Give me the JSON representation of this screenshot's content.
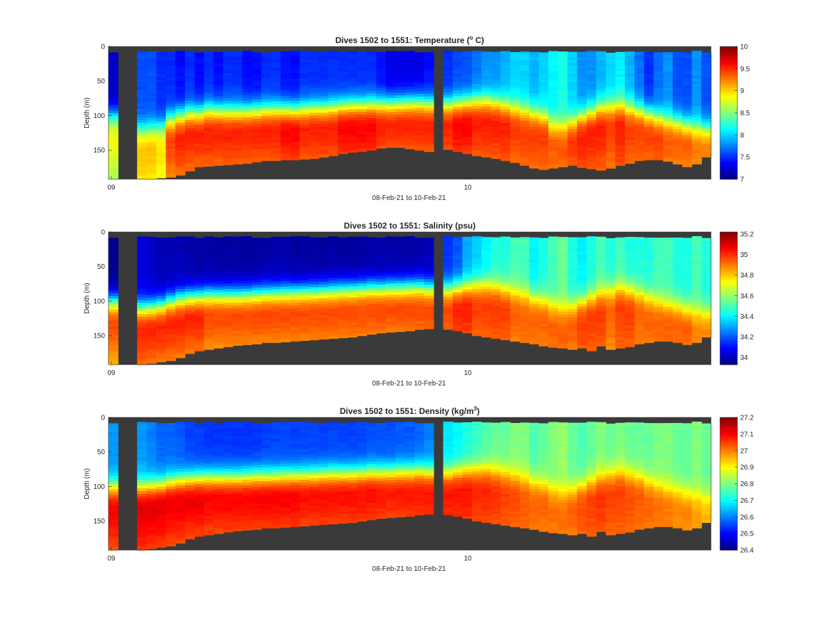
{
  "figure": {
    "colors": {
      "background": "#ffffff",
      "no_data": "#3a3a3a",
      "colormap": "jet"
    }
  },
  "chart_data": [
    {
      "type": "heatmap",
      "title_prefix": "Dives 1502 to 1551: Temperature (",
      "title_sup": "o",
      "title_suffix": " C)",
      "variable": "temperature",
      "xlabel": "08-Feb-21 to 10-Feb-21",
      "ylabel": "Depth (m)",
      "x_ticks": [
        "09",
        "10"
      ],
      "y_ticks": [
        0,
        50,
        100,
        150
      ],
      "ylim": [
        0,
        192
      ],
      "y_reversed": true,
      "colorbar_ticks": [
        10,
        9.5,
        9,
        8.5,
        8,
        7.5,
        7
      ],
      "clim": [
        7,
        10
      ],
      "grid": false,
      "profiles": {
        "bottom_depth_m": [
          192,
          192,
          192,
          192,
          192,
          190,
          189,
          186,
          180,
          174,
          173,
          172,
          171,
          170,
          169,
          167,
          165,
          165,
          164,
          164,
          163,
          162,
          160,
          158,
          155,
          153,
          152,
          150,
          147,
          146,
          146,
          148,
          150,
          152,
          150,
          149,
          152,
          155,
          158,
          160,
          162,
          165,
          168,
          172,
          176,
          178,
          176,
          174,
          172,
          175,
          177,
          179,
          176,
          172,
          169,
          165,
          164,
          164,
          166,
          170,
          174,
          170,
          160
        ],
        "thermocline_m": [
          null,
          null,
          null,
          120,
          118,
          115,
          105,
          100,
          96,
          95,
          92,
          92,
          93,
          93,
          92,
          91,
          90,
          90,
          90,
          91,
          89,
          88,
          88,
          86,
          85,
          84,
          84,
          83,
          82,
          82,
          81,
          80,
          80,
          82,
          84,
          83,
          82,
          80,
          78,
          78,
          80,
          84,
          88,
          92,
          95,
          100,
          112,
          114,
          108,
          100,
          94,
          88,
          86,
          86,
          88,
          92,
          96,
          102,
          106,
          108,
          112,
          116,
          118
        ],
        "surface_value": [
          7.2,
          null,
          null,
          7.6,
          7.6,
          7.5,
          7.5,
          7.4,
          7.5,
          7.4,
          7.5,
          7.4,
          7.5,
          7.5,
          7.4,
          7.4,
          7.5,
          7.5,
          7.4,
          7.4,
          7.5,
          7.5,
          7.5,
          7.5,
          7.5,
          7.5,
          7.5,
          7.5,
          7.4,
          7.3,
          7.3,
          7.3,
          7.3,
          7.4,
          7.5,
          7.5,
          7.6,
          7.6,
          7.7,
          7.8,
          7.8,
          7.9,
          8.0,
          8.0,
          7.9,
          8.0,
          8.1,
          8.2,
          8.0,
          7.8,
          7.8,
          7.9,
          8.0,
          8.1,
          7.9,
          7.7,
          7.5,
          7.7,
          7.8,
          7.6,
          7.6,
          7.8,
          7.6
        ],
        "deep_value": [
          8.9,
          null,
          null,
          9.1,
          9.1,
          9.0,
          9.5,
          9.6,
          9.6,
          9.6,
          9.6,
          9.6,
          9.6,
          9.6,
          9.6,
          9.6,
          9.6,
          9.6,
          9.7,
          9.7,
          9.6,
          9.6,
          9.6,
          9.6,
          9.7,
          9.7,
          9.7,
          9.7,
          9.6,
          9.6,
          9.6,
          9.6,
          9.6,
          9.6,
          9.6,
          9.6,
          9.7,
          9.7,
          9.6,
          9.6,
          9.6,
          9.6,
          9.5,
          9.5,
          9.5,
          9.5,
          9.4,
          9.4,
          9.5,
          9.6,
          9.6,
          9.6,
          9.5,
          9.6,
          9.5,
          9.5,
          9.5,
          9.5,
          9.4,
          9.4,
          9.4,
          9.3,
          9.3
        ]
      }
    },
    {
      "type": "heatmap",
      "title_prefix": "Dives 1502 to 1551: Salinity (psu)",
      "title_sup": "",
      "title_suffix": "",
      "variable": "salinity",
      "xlabel": "08-Feb-21 to 10-Feb-21",
      "ylabel": "Depth (m)",
      "x_ticks": [
        "09",
        "10"
      ],
      "y_ticks": [
        0,
        50,
        100,
        150
      ],
      "ylim": [
        0,
        192
      ],
      "y_reversed": true,
      "colorbar_ticks": [
        35.2,
        35,
        34.8,
        34.6,
        34.4,
        34.2,
        34
      ],
      "clim": [
        33.93,
        35.22
      ],
      "grid": false,
      "profiles": {
        "bottom_depth_m": [
          192,
          192,
          192,
          192,
          190,
          188,
          186,
          182,
          176,
          172,
          170,
          168,
          166,
          164,
          163,
          162,
          160,
          160,
          159,
          158,
          157,
          156,
          155,
          154,
          153,
          152,
          150,
          148,
          146,
          145,
          144,
          143,
          141,
          140,
          140,
          141,
          143,
          146,
          150,
          152,
          154,
          156,
          158,
          160,
          162,
          165,
          167,
          168,
          170,
          168,
          172,
          165,
          170,
          168,
          166,
          162,
          160,
          158,
          158,
          160,
          163,
          160,
          152
        ],
        "thermocline_m": [
          null,
          null,
          null,
          110,
          108,
          105,
          100,
          96,
          93,
          92,
          90,
          90,
          90,
          90,
          89,
          88,
          87,
          87,
          86,
          86,
          85,
          85,
          84,
          83,
          82,
          82,
          81,
          80,
          80,
          79,
          79,
          78,
          78,
          80,
          82,
          82,
          80,
          78,
          76,
          76,
          78,
          82,
          86,
          90,
          94,
          98,
          106,
          110,
          106,
          100,
          94,
          88,
          84,
          82,
          84,
          88,
          94,
          100,
          104,
          106,
          110,
          114,
          116
        ],
        "surface_value": [
          33.95,
          null,
          null,
          34.05,
          34.02,
          34.0,
          34.0,
          34.0,
          33.98,
          33.98,
          33.98,
          33.97,
          33.97,
          33.98,
          33.97,
          33.97,
          33.98,
          33.98,
          33.98,
          33.97,
          33.97,
          33.97,
          33.97,
          33.97,
          33.97,
          33.97,
          33.97,
          33.98,
          33.98,
          33.98,
          33.98,
          33.98,
          33.99,
          34.0,
          34.1,
          34.15,
          34.2,
          34.3,
          34.35,
          34.4,
          34.45,
          34.45,
          34.5,
          34.5,
          34.4,
          34.45,
          34.5,
          34.55,
          34.45,
          34.4,
          34.45,
          34.5,
          34.45,
          34.5,
          34.45,
          34.45,
          34.45,
          34.5,
          34.5,
          34.45,
          34.45,
          34.5,
          34.45
        ],
        "deep_value": [
          35.0,
          null,
          null,
          35.05,
          35.05,
          35.05,
          35.05,
          35.05,
          35.05,
          35.05,
          35.0,
          35.0,
          35.0,
          35.0,
          35.0,
          35.0,
          35.0,
          35.0,
          35.0,
          35.0,
          35.0,
          35.0,
          35.0,
          35.0,
          35.0,
          35.0,
          35.0,
          35.0,
          35.0,
          35.0,
          35.0,
          35.0,
          35.0,
          35.0,
          35.0,
          35.0,
          35.05,
          35.05,
          35.0,
          35.0,
          35.0,
          35.0,
          34.95,
          34.95,
          34.95,
          34.95,
          34.95,
          34.95,
          34.95,
          35.0,
          35.0,
          35.0,
          34.95,
          35.0,
          35.0,
          34.95,
          34.95,
          34.95,
          34.95,
          34.95,
          34.95,
          34.9,
          34.9
        ]
      }
    },
    {
      "type": "heatmap",
      "title_prefix": "Dives 1502 to 1551: Density (kg/m",
      "title_sup": "3",
      "title_suffix": ")",
      "variable": "density",
      "xlabel": "08-Feb-21 to 10-Feb-21",
      "ylabel": "Depth (m)",
      "x_ticks": [
        "09",
        "10"
      ],
      "y_ticks": [
        0,
        50,
        100,
        150
      ],
      "ylim": [
        0,
        192
      ],
      "y_reversed": true,
      "colorbar_ticks": [
        27.2,
        27.1,
        27,
        26.9,
        26.8,
        26.7,
        26.6,
        26.5,
        26.4
      ],
      "clim": [
        26.4,
        27.2
      ],
      "grid": false,
      "profiles": {
        "bottom_depth_m": [
          192,
          192,
          192,
          192,
          190,
          188,
          186,
          182,
          176,
          172,
          170,
          168,
          166,
          164,
          163,
          162,
          160,
          160,
          159,
          158,
          157,
          156,
          155,
          154,
          153,
          152,
          150,
          148,
          146,
          145,
          144,
          143,
          141,
          140,
          140,
          141,
          143,
          146,
          150,
          152,
          154,
          156,
          158,
          160,
          162,
          165,
          167,
          168,
          170,
          168,
          172,
          165,
          170,
          168,
          166,
          162,
          160,
          158,
          158,
          160,
          163,
          160,
          152
        ],
        "thermocline_m": [
          null,
          null,
          null,
          100,
          98,
          96,
          92,
          90,
          88,
          87,
          86,
          86,
          86,
          86,
          85,
          84,
          84,
          84,
          83,
          83,
          82,
          82,
          81,
          80,
          80,
          80,
          79,
          78,
          78,
          78,
          77,
          77,
          76,
          78,
          80,
          80,
          78,
          76,
          75,
          75,
          77,
          80,
          84,
          88,
          92,
          96,
          104,
          108,
          104,
          98,
          92,
          86,
          82,
          80,
          82,
          86,
          92,
          98,
          102,
          104,
          108,
          112,
          114
        ],
        "surface_value": [
          26.62,
          null,
          null,
          26.62,
          26.6,
          26.58,
          26.58,
          26.57,
          26.55,
          26.55,
          26.54,
          26.54,
          26.54,
          26.54,
          26.54,
          26.54,
          26.55,
          26.55,
          26.55,
          26.55,
          26.55,
          26.55,
          26.55,
          26.55,
          26.55,
          26.55,
          26.55,
          26.56,
          26.56,
          26.56,
          26.57,
          26.57,
          26.58,
          26.6,
          26.65,
          26.68,
          26.7,
          26.72,
          26.74,
          26.76,
          26.78,
          26.78,
          26.8,
          26.8,
          26.76,
          26.78,
          26.8,
          26.82,
          26.78,
          26.76,
          26.78,
          26.8,
          26.78,
          26.8,
          26.78,
          26.78,
          26.78,
          26.8,
          26.8,
          26.78,
          26.78,
          26.8,
          26.78
        ],
        "deep_value": [
          27.12,
          null,
          null,
          27.14,
          27.14,
          27.14,
          27.13,
          27.13,
          27.13,
          27.13,
          27.12,
          27.12,
          27.12,
          27.12,
          27.12,
          27.12,
          27.12,
          27.12,
          27.12,
          27.12,
          27.11,
          27.11,
          27.11,
          27.11,
          27.11,
          27.11,
          27.11,
          27.11,
          27.1,
          27.1,
          27.1,
          27.1,
          27.1,
          27.1,
          27.1,
          27.1,
          27.1,
          27.1,
          27.08,
          27.08,
          27.07,
          27.06,
          27.05,
          27.04,
          27.03,
          27.03,
          27.02,
          27.02,
          27.03,
          27.05,
          27.06,
          27.07,
          27.06,
          27.06,
          27.05,
          27.04,
          27.03,
          27.02,
          27.01,
          27.0,
          27.0,
          26.98,
          26.96
        ]
      }
    }
  ]
}
